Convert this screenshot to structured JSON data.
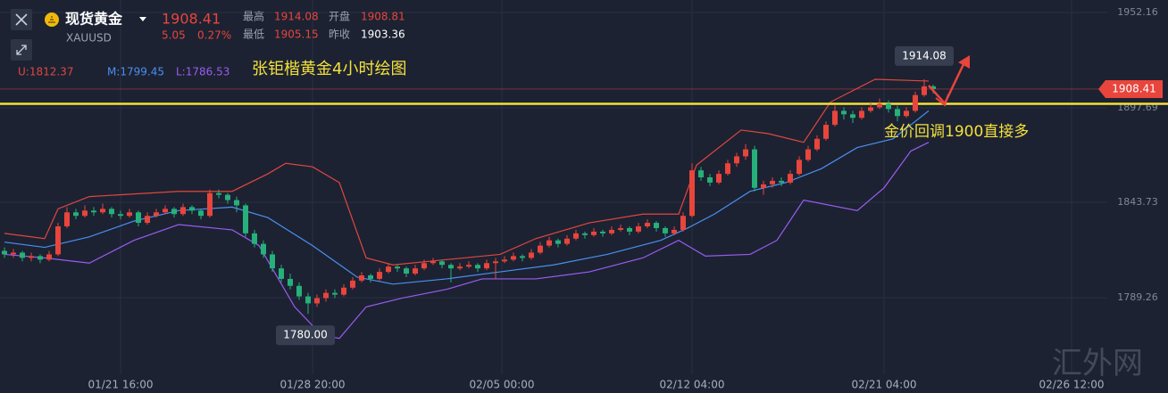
{
  "header": {
    "symbol_name": "现货黄金",
    "symbol_code": "XAUUSD",
    "price": "1908.41",
    "change": "5.05",
    "change_pct": "0.27%",
    "high_label": "最高",
    "high": "1914.08",
    "open_label": "开盘",
    "open": "1908.81",
    "low_label": "最低",
    "low": "1905.15",
    "prev_close_label": "昨收",
    "prev_close": "1903.36"
  },
  "chart_data": {
    "type": "candlestick",
    "title": "张钜楷黄金4小时绘图",
    "annotation": "金价回调1900直接多",
    "watermark": "汇外网",
    "up_color": "#e8453c",
    "down_color": "#26b07a",
    "xlim": [
      -0.5,
      123.5
    ],
    "ylim": [
      1745.5,
      1959.3
    ],
    "xticks": [
      {
        "value": 13,
        "label": "01/21 16:00"
      },
      {
        "value": 34.5,
        "label": "01/28 20:00"
      },
      {
        "value": 55.7,
        "label": "02/05 00:00"
      },
      {
        "value": 77,
        "label": "02/12 04:00"
      },
      {
        "value": 98.5,
        "label": "02/21 04:00"
      },
      {
        "value": 119.5,
        "label": "02/26 12:00"
      }
    ],
    "yticks": [
      1789.26,
      1843.73,
      1897.69,
      1952.16
    ],
    "grid": true,
    "last_price": 1908.41,
    "support_line": 1900,
    "high_mark": 1914.08,
    "low_mark": {
      "value": 1780,
      "label": "1780.00"
    },
    "ohlc": [
      [
        1816,
        1818,
        1812,
        1814
      ],
      [
        1814,
        1817,
        1812,
        1815
      ],
      [
        1815,
        1816,
        1810,
        1812
      ],
      [
        1812,
        1815,
        1810,
        1813
      ],
      [
        1813,
        1814,
        1809,
        1811
      ],
      [
        1811,
        1816,
        1810,
        1814
      ],
      [
        1814,
        1832,
        1813,
        1830
      ],
      [
        1830,
        1841,
        1829,
        1838
      ],
      [
        1838,
        1840,
        1834,
        1836
      ],
      [
        1836,
        1842,
        1835,
        1839
      ],
      [
        1839,
        1841,
        1836,
        1838
      ],
      [
        1838,
        1843,
        1837,
        1840
      ],
      [
        1840,
        1841,
        1835,
        1837
      ],
      [
        1837,
        1839,
        1834,
        1836
      ],
      [
        1836,
        1840,
        1835,
        1838
      ],
      [
        1838,
        1839,
        1830,
        1832
      ],
      [
        1832,
        1838,
        1831,
        1836
      ],
      [
        1836,
        1840,
        1835,
        1838
      ],
      [
        1838,
        1842,
        1837,
        1840
      ],
      [
        1840,
        1841,
        1835,
        1837
      ],
      [
        1837,
        1843,
        1836,
        1841
      ],
      [
        1841,
        1842,
        1837,
        1839
      ],
      [
        1839,
        1840,
        1834,
        1836
      ],
      [
        1836,
        1851,
        1835,
        1849
      ],
      [
        1849,
        1851,
        1846,
        1848
      ],
      [
        1848,
        1849,
        1843,
        1845
      ],
      [
        1845,
        1847,
        1838,
        1842
      ],
      [
        1842,
        1843,
        1824,
        1826
      ],
      [
        1826,
        1828,
        1818,
        1820
      ],
      [
        1820,
        1822,
        1812,
        1814
      ],
      [
        1814,
        1816,
        1804,
        1806
      ],
      [
        1806,
        1808,
        1798,
        1800
      ],
      [
        1800,
        1803,
        1794,
        1796
      ],
      [
        1796,
        1798,
        1788,
        1790
      ],
      [
        1790,
        1792,
        1780,
        1786
      ],
      [
        1786,
        1791,
        1784,
        1789
      ],
      [
        1789,
        1794,
        1787,
        1792
      ],
      [
        1792,
        1794,
        1789,
        1791
      ],
      [
        1791,
        1797,
        1790,
        1795
      ],
      [
        1795,
        1801,
        1794,
        1799
      ],
      [
        1799,
        1804,
        1798,
        1802
      ],
      [
        1802,
        1803,
        1798,
        1800
      ],
      [
        1800,
        1806,
        1799,
        1804
      ],
      [
        1804,
        1809,
        1803,
        1807
      ],
      [
        1807,
        1808,
        1804,
        1806
      ],
      [
        1806,
        1807,
        1801,
        1803
      ],
      [
        1803,
        1808,
        1802,
        1806
      ],
      [
        1806,
        1811,
        1805,
        1809
      ],
      [
        1809,
        1812,
        1808,
        1810
      ],
      [
        1810,
        1811,
        1806,
        1808
      ],
      [
        1808,
        1809,
        1798,
        1806
      ],
      [
        1806,
        1809,
        1805,
        1807
      ],
      [
        1807,
        1810,
        1806,
        1808
      ],
      [
        1808,
        1809,
        1804,
        1806
      ],
      [
        1806,
        1811,
        1805,
        1809
      ],
      [
        1809,
        1812,
        1800,
        1810
      ],
      [
        1810,
        1813,
        1809,
        1811
      ],
      [
        1811,
        1815,
        1810,
        1813
      ],
      [
        1813,
        1814,
        1810,
        1812
      ],
      [
        1812,
        1817,
        1811,
        1815
      ],
      [
        1815,
        1821,
        1814,
        1819
      ],
      [
        1819,
        1824,
        1818,
        1822
      ],
      [
        1822,
        1823,
        1818,
        1820
      ],
      [
        1820,
        1825,
        1819,
        1823
      ],
      [
        1823,
        1828,
        1822,
        1826
      ],
      [
        1826,
        1827,
        1823,
        1825
      ],
      [
        1825,
        1829,
        1824,
        1827
      ],
      [
        1827,
        1828,
        1824,
        1826
      ],
      [
        1826,
        1830,
        1825,
        1828
      ],
      [
        1828,
        1831,
        1827,
        1829
      ],
      [
        1829,
        1830,
        1825,
        1827
      ],
      [
        1827,
        1832,
        1826,
        1830
      ],
      [
        1830,
        1834,
        1829,
        1832
      ],
      [
        1832,
        1833,
        1827,
        1829
      ],
      [
        1829,
        1830,
        1824,
        1826
      ],
      [
        1826,
        1830,
        1825,
        1828
      ],
      [
        1828,
        1838,
        1827,
        1836
      ],
      [
        1836,
        1866,
        1835,
        1862
      ],
      [
        1862,
        1864,
        1856,
        1858
      ],
      [
        1858,
        1860,
        1853,
        1855
      ],
      [
        1855,
        1862,
        1854,
        1860
      ],
      [
        1860,
        1868,
        1859,
        1866
      ],
      [
        1866,
        1872,
        1864,
        1870
      ],
      [
        1870,
        1877,
        1868,
        1874
      ],
      [
        1874,
        1876,
        1850,
        1852
      ],
      [
        1852,
        1856,
        1848,
        1854
      ],
      [
        1854,
        1858,
        1852,
        1856
      ],
      [
        1856,
        1858,
        1853,
        1855
      ],
      [
        1855,
        1862,
        1854,
        1860
      ],
      [
        1860,
        1870,
        1859,
        1868
      ],
      [
        1868,
        1876,
        1867,
        1874
      ],
      [
        1874,
        1882,
        1873,
        1880
      ],
      [
        1880,
        1890,
        1879,
        1888
      ],
      [
        1888,
        1899,
        1887,
        1896
      ],
      [
        1896,
        1898,
        1891,
        1894
      ],
      [
        1894,
        1896,
        1889,
        1892
      ],
      [
        1892,
        1898,
        1891,
        1896
      ],
      [
        1896,
        1901,
        1895,
        1898
      ],
      [
        1898,
        1903,
        1897,
        1900
      ],
      [
        1900,
        1902,
        1895,
        1897
      ],
      [
        1897,
        1899,
        1890,
        1893
      ],
      [
        1893,
        1898,
        1892,
        1896
      ],
      [
        1896,
        1907,
        1895,
        1905
      ],
      [
        1905,
        1914.08,
        1904,
        1910
      ],
      [
        1910,
        1911,
        1906,
        1908.41
      ]
    ],
    "series": [
      {
        "name": "U:1812.37",
        "color": "#e0473f",
        "x": [
          0,
          4.5,
          6,
          9.5,
          19.5,
          25.5,
          29.5,
          31.5,
          34.5,
          37.5,
          40.5,
          43.5,
          49.5,
          55.5,
          59.5,
          65.5,
          71.5,
          75.5,
          77.5,
          82.5,
          85.5,
          89.5,
          92.5,
          97.5,
          103.5
        ],
        "values": [
          1826,
          1823,
          1840,
          1847,
          1850,
          1850,
          1860,
          1866,
          1864,
          1855,
          1812,
          1808,
          1811,
          1814,
          1823,
          1832,
          1837,
          1837,
          1865,
          1885,
          1883,
          1878,
          1901,
          1914,
          1913
        ]
      },
      {
        "name": "M:1799.45",
        "color": "#4a8ff0",
        "x": [
          0,
          4.5,
          9.5,
          14.5,
          19.5,
          25.5,
          29.5,
          34.5,
          39.5,
          43.5,
          49.5,
          55.5,
          61.5,
          67.5,
          73.5,
          76.5,
          79.5,
          83.5,
          87.5,
          91.5,
          95.5,
          99.5,
          103.5
        ],
        "values": [
          1821,
          1818,
          1824,
          1833,
          1839,
          1841,
          1835,
          1819,
          1801,
          1797,
          1800,
          1804,
          1808,
          1814,
          1822,
          1829,
          1837,
          1850,
          1855,
          1863,
          1875,
          1880,
          1896
        ]
      },
      {
        "name": "L:1786.53",
        "color": "#9a5cf0",
        "x": [
          0,
          4.5,
          9.5,
          14.5,
          19.5,
          25.5,
          28.5,
          32.5,
          35.5,
          37.5,
          40.5,
          44.5,
          49.5,
          53.5,
          59.5,
          65.5,
          71.5,
          75.5,
          78.5,
          83.5,
          86.5,
          89.5,
          95.5,
          98.5,
          101.5,
          103.5
        ],
        "values": [
          1814,
          1812,
          1809,
          1822,
          1831,
          1828,
          1819,
          1784,
          1768,
          1766,
          1784,
          1789,
          1794,
          1800,
          1800,
          1804,
          1812,
          1822,
          1813,
          1814,
          1822,
          1845,
          1839,
          1852,
          1873,
          1878
        ]
      }
    ]
  }
}
